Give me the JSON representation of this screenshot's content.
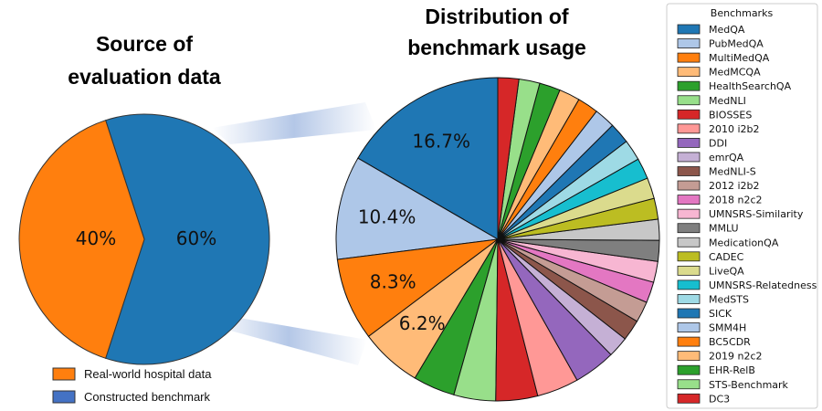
{
  "chart_data": [
    {
      "type": "pie",
      "title": "Source of evaluation data",
      "title_lines": [
        "Source of",
        "evaluation data"
      ],
      "slices": [
        {
          "name": "Real-world hospital data",
          "value": 40,
          "label": "40%",
          "color": "#ff7f0e"
        },
        {
          "name": "Constructed benchmark",
          "value": 60,
          "label": "60%",
          "color": "#1f77b4"
        }
      ],
      "legend": [
        {
          "label": "Real-world hospital data",
          "color": "#ff7f0e"
        },
        {
          "label": "Constructed benchmark",
          "color": "#4472c4"
        }
      ]
    },
    {
      "type": "pie",
      "title": "Distribution of benchmark usage",
      "title_lines": [
        "Distribution of",
        "benchmark usage"
      ],
      "legend_title": "Benchmarks",
      "legend_position": "right",
      "slices": [
        {
          "name": "MedQA",
          "value": 16.7,
          "label": "16.7%",
          "color": "#1f77b4"
        },
        {
          "name": "PubMedQA",
          "value": 10.4,
          "label": "10.4%",
          "color": "#aec7e8"
        },
        {
          "name": "MultiMedQA",
          "value": 8.3,
          "label": "8.3%",
          "color": "#ff7f0e"
        },
        {
          "name": "MedMCQA",
          "value": 6.2,
          "label": "6.2%",
          "color": "#ffbb78"
        },
        {
          "name": "HealthSearchQA",
          "value": 4.2,
          "label": "",
          "color": "#2ca02c"
        },
        {
          "name": "MedNLI",
          "value": 4.2,
          "label": "",
          "color": "#98df8a"
        },
        {
          "name": "BIOSSES",
          "value": 4.2,
          "label": "",
          "color": "#d62728"
        },
        {
          "name": "2010 i2b2",
          "value": 4.2,
          "label": "",
          "color": "#ff9896"
        },
        {
          "name": "DDI",
          "value": 4.2,
          "label": "",
          "color": "#9467bd"
        },
        {
          "name": "emrQA",
          "value": 2.1,
          "label": "",
          "color": "#c5b0d5"
        },
        {
          "name": "MedNLI-S",
          "value": 2.1,
          "label": "",
          "color": "#8c564b"
        },
        {
          "name": "2012 i2b2",
          "value": 2.1,
          "label": "",
          "color": "#c49c94"
        },
        {
          "name": "2018 n2c2",
          "value": 2.1,
          "label": "",
          "color": "#e377c2"
        },
        {
          "name": "UMNSRS-Similarity",
          "value": 2.1,
          "label": "",
          "color": "#f7b6d2"
        },
        {
          "name": "MMLU",
          "value": 2.1,
          "label": "",
          "color": "#7f7f7f"
        },
        {
          "name": "MedicationQA",
          "value": 2.1,
          "label": "",
          "color": "#c7c7c7"
        },
        {
          "name": "CADEC",
          "value": 2.1,
          "label": "",
          "color": "#bcbd22"
        },
        {
          "name": "LiveQA",
          "value": 2.1,
          "label": "",
          "color": "#dbdb8d"
        },
        {
          "name": "UMNSRS-Relatedness",
          "value": 2.1,
          "label": "",
          "color": "#17becf"
        },
        {
          "name": "MedSTS",
          "value": 2.1,
          "label": "",
          "color": "#9edae5"
        },
        {
          "name": "SICK",
          "value": 2.1,
          "label": "",
          "color": "#1f77b4"
        },
        {
          "name": "SMM4H",
          "value": 2.1,
          "label": "",
          "color": "#aec7e8"
        },
        {
          "name": "BC5CDR",
          "value": 2.1,
          "label": "",
          "color": "#ff7f0e"
        },
        {
          "name": "2019 n2c2",
          "value": 2.1,
          "label": "",
          "color": "#ffbb78"
        },
        {
          "name": "EHR-RelB",
          "value": 2.1,
          "label": "",
          "color": "#2ca02c"
        },
        {
          "name": "STS-Benchmark",
          "value": 2.1,
          "label": "",
          "color": "#98df8a"
        },
        {
          "name": "DC3",
          "value": 2.1,
          "label": "",
          "color": "#d62728"
        }
      ]
    }
  ]
}
